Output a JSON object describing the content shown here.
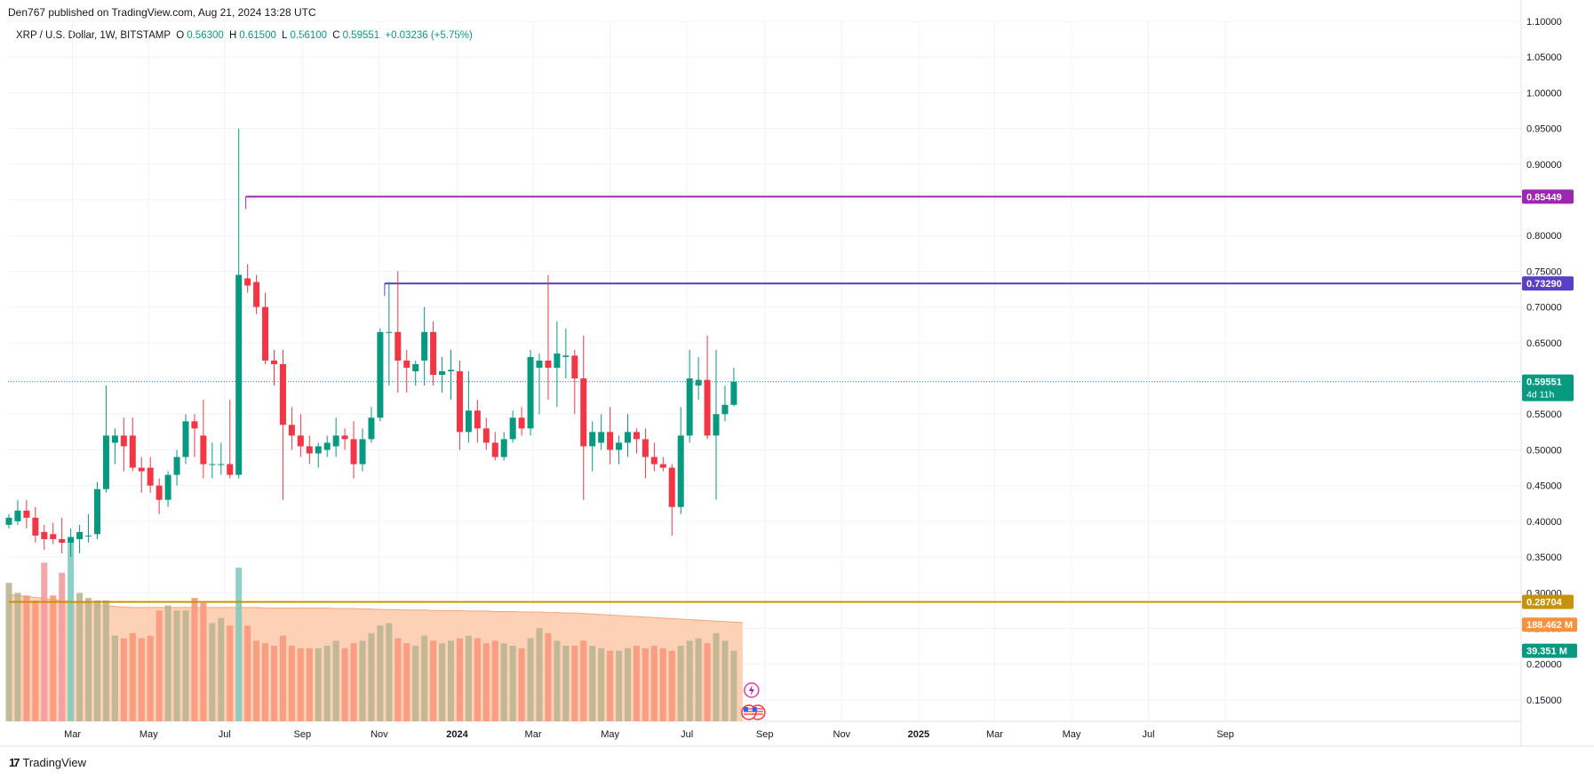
{
  "header": {
    "meta": "Den767 published on TradingView.com, Aug 21, 2024 13:28 UTC"
  },
  "legend": {
    "symbol": "XRP / U.S. Dollar, 1W, BITSTAMP",
    "o_label": "O",
    "o_value": "0.56300",
    "h_label": "H",
    "h_value": "0.61500",
    "l_label": "L",
    "l_value": "0.56100",
    "c_label": "C",
    "c_value": "0.59551",
    "change": "+0.03236 (+5.75%)"
  },
  "footer": {
    "brand": "TradingView",
    "glyph": "17"
  },
  "colors": {
    "up": "#089981",
    "down": "#f23645",
    "vol_up": "#bdb591",
    "vol_down": "#f8987c",
    "vol_avg_fill": "#fcc9a8",
    "line_0854": "#9c27b0",
    "line_0733": "#5b3fc4",
    "line_0287": "#c8920a",
    "price_badge": "#089981",
    "vol_badge": "#f7913d"
  },
  "chart_data": {
    "type": "candlestick",
    "title": "XRP / U.S. Dollar, 1W, BITSTAMP",
    "ylim": [
      0.12,
      1.1
    ],
    "y_ticks": [
      "1.10000",
      "1.05000",
      "1.00000",
      "0.95000",
      "0.90000",
      "0.85000",
      "0.80000",
      "0.75000",
      "0.70000",
      "0.65000",
      "0.60000",
      "0.55000",
      "0.50000",
      "0.45000",
      "0.40000",
      "0.35000",
      "0.30000",
      "0.25000",
      "0.20000",
      "0.15000"
    ],
    "y_tick_values": [
      1.1,
      1.05,
      1.0,
      0.95,
      0.9,
      0.85,
      0.8,
      0.75,
      0.7,
      0.65,
      0.6,
      0.55,
      0.5,
      0.45,
      0.4,
      0.35,
      0.3,
      0.25,
      0.2,
      0.15
    ],
    "x_ticks": [
      {
        "label": "Mar",
        "week": 7.2,
        "bold": false
      },
      {
        "label": "May",
        "week": 15.8,
        "bold": false
      },
      {
        "label": "Jul",
        "week": 24.4,
        "bold": false
      },
      {
        "label": "Sep",
        "week": 33.2,
        "bold": false
      },
      {
        "label": "Nov",
        "week": 41.9,
        "bold": false
      },
      {
        "label": "2024",
        "week": 50.7,
        "bold": true
      },
      {
        "label": "Mar",
        "week": 59.3,
        "bold": false
      },
      {
        "label": "May",
        "week": 68.0,
        "bold": false
      },
      {
        "label": "Jul",
        "week": 76.7,
        "bold": false
      },
      {
        "label": "Sep",
        "week": 85.5,
        "bold": false
      },
      {
        "label": "Nov",
        "week": 94.2,
        "bold": false
      },
      {
        "label": "2025",
        "week": 102.9,
        "bold": true
      },
      {
        "label": "Mar",
        "week": 111.5,
        "bold": false
      },
      {
        "label": "May",
        "week": 120.2,
        "bold": false
      },
      {
        "label": "Jul",
        "week": 128.9,
        "bold": false
      },
      {
        "label": "Sep",
        "week": 137.6,
        "bold": false
      }
    ],
    "candles": [
      {
        "o": 0.395,
        "h": 0.41,
        "l": 0.39,
        "c": 0.405,
        "v": 0.275
      },
      {
        "o": 0.4,
        "h": 0.43,
        "l": 0.395,
        "c": 0.415,
        "v": 0.255
      },
      {
        "o": 0.415,
        "h": 0.43,
        "l": 0.39,
        "c": 0.405,
        "v": 0.25
      },
      {
        "o": 0.405,
        "h": 0.42,
        "l": 0.37,
        "c": 0.38,
        "v": 0.24
      },
      {
        "o": 0.385,
        "h": 0.395,
        "l": 0.36,
        "c": 0.375,
        "v": 0.315
      },
      {
        "o": 0.382,
        "h": 0.398,
        "l": 0.368,
        "c": 0.375,
        "v": 0.25
      },
      {
        "o": 0.375,
        "h": 0.405,
        "l": 0.355,
        "c": 0.37,
        "v": 0.295
      },
      {
        "o": 0.37,
        "h": 0.39,
        "l": 0.35,
        "c": 0.378,
        "v": 0.36
      },
      {
        "o": 0.375,
        "h": 0.395,
        "l": 0.355,
        "c": 0.385,
        "v": 0.255
      },
      {
        "o": 0.38,
        "h": 0.41,
        "l": 0.37,
        "c": 0.38,
        "v": 0.245
      },
      {
        "o": 0.382,
        "h": 0.455,
        "l": 0.375,
        "c": 0.445,
        "v": 0.24
      },
      {
        "o": 0.445,
        "h": 0.59,
        "l": 0.44,
        "c": 0.52,
        "v": 0.24
      },
      {
        "o": 0.51,
        "h": 0.53,
        "l": 0.48,
        "c": 0.52,
        "v": 0.17
      },
      {
        "o": 0.52,
        "h": 0.545,
        "l": 0.47,
        "c": 0.505,
        "v": 0.165
      },
      {
        "o": 0.52,
        "h": 0.545,
        "l": 0.47,
        "c": 0.475,
        "v": 0.175
      },
      {
        "o": 0.475,
        "h": 0.49,
        "l": 0.44,
        "c": 0.47,
        "v": 0.165
      },
      {
        "o": 0.475,
        "h": 0.49,
        "l": 0.44,
        "c": 0.45,
        "v": 0.17
      },
      {
        "o": 0.45,
        "h": 0.46,
        "l": 0.41,
        "c": 0.43,
        "v": 0.22
      },
      {
        "o": 0.43,
        "h": 0.47,
        "l": 0.42,
        "c": 0.465,
        "v": 0.23
      },
      {
        "o": 0.465,
        "h": 0.5,
        "l": 0.45,
        "c": 0.49,
        "v": 0.22
      },
      {
        "o": 0.49,
        "h": 0.55,
        "l": 0.48,
        "c": 0.54,
        "v": 0.22
      },
      {
        "o": 0.54,
        "h": 0.55,
        "l": 0.49,
        "c": 0.53,
        "v": 0.245
      },
      {
        "o": 0.52,
        "h": 0.57,
        "l": 0.46,
        "c": 0.48,
        "v": 0.235
      },
      {
        "o": 0.48,
        "h": 0.51,
        "l": 0.46,
        "c": 0.48,
        "v": 0.195
      },
      {
        "o": 0.48,
        "h": 0.51,
        "l": 0.465,
        "c": 0.48,
        "v": 0.205
      },
      {
        "o": 0.48,
        "h": 0.57,
        "l": 0.46,
        "c": 0.465,
        "v": 0.19
      },
      {
        "o": 0.465,
        "h": 0.95,
        "l": 0.46,
        "c": 0.745,
        "v": 0.305
      },
      {
        "o": 0.74,
        "h": 0.76,
        "l": 0.72,
        "c": 0.73,
        "v": 0.19
      },
      {
        "o": 0.735,
        "h": 0.745,
        "l": 0.69,
        "c": 0.7,
        "v": 0.16
      },
      {
        "o": 0.7,
        "h": 0.72,
        "l": 0.62,
        "c": 0.625,
        "v": 0.155
      },
      {
        "o": 0.625,
        "h": 0.64,
        "l": 0.59,
        "c": 0.62,
        "v": 0.15
      },
      {
        "o": 0.62,
        "h": 0.64,
        "l": 0.43,
        "c": 0.535,
        "v": 0.17
      },
      {
        "o": 0.535,
        "h": 0.56,
        "l": 0.5,
        "c": 0.52,
        "v": 0.15
      },
      {
        "o": 0.52,
        "h": 0.55,
        "l": 0.49,
        "c": 0.505,
        "v": 0.145
      },
      {
        "o": 0.505,
        "h": 0.52,
        "l": 0.48,
        "c": 0.495,
        "v": 0.145
      },
      {
        "o": 0.495,
        "h": 0.51,
        "l": 0.475,
        "c": 0.505,
        "v": 0.145
      },
      {
        "o": 0.5,
        "h": 0.52,
        "l": 0.49,
        "c": 0.51,
        "v": 0.15
      },
      {
        "o": 0.505,
        "h": 0.545,
        "l": 0.49,
        "c": 0.52,
        "v": 0.16
      },
      {
        "o": 0.52,
        "h": 0.53,
        "l": 0.5,
        "c": 0.515,
        "v": 0.145
      },
      {
        "o": 0.515,
        "h": 0.54,
        "l": 0.46,
        "c": 0.48,
        "v": 0.155
      },
      {
        "o": 0.48,
        "h": 0.53,
        "l": 0.47,
        "c": 0.515,
        "v": 0.16
      },
      {
        "o": 0.515,
        "h": 0.56,
        "l": 0.51,
        "c": 0.545,
        "v": 0.175
      },
      {
        "o": 0.545,
        "h": 0.67,
        "l": 0.54,
        "c": 0.665,
        "v": 0.19
      },
      {
        "o": 0.665,
        "h": 0.735,
        "l": 0.59,
        "c": 0.665,
        "v": 0.195
      },
      {
        "o": 0.665,
        "h": 0.75,
        "l": 0.58,
        "c": 0.625,
        "v": 0.165
      },
      {
        "o": 0.625,
        "h": 0.64,
        "l": 0.58,
        "c": 0.615,
        "v": 0.155
      },
      {
        "o": 0.61,
        "h": 0.625,
        "l": 0.59,
        "c": 0.62,
        "v": 0.15
      },
      {
        "o": 0.625,
        "h": 0.7,
        "l": 0.59,
        "c": 0.665,
        "v": 0.17
      },
      {
        "o": 0.665,
        "h": 0.68,
        "l": 0.59,
        "c": 0.605,
        "v": 0.16
      },
      {
        "o": 0.605,
        "h": 0.63,
        "l": 0.58,
        "c": 0.61,
        "v": 0.155
      },
      {
        "o": 0.61,
        "h": 0.64,
        "l": 0.57,
        "c": 0.612,
        "v": 0.16
      },
      {
        "o": 0.61,
        "h": 0.625,
        "l": 0.5,
        "c": 0.525,
        "v": 0.165
      },
      {
        "o": 0.525,
        "h": 0.61,
        "l": 0.51,
        "c": 0.555,
        "v": 0.17
      },
      {
        "o": 0.555,
        "h": 0.57,
        "l": 0.51,
        "c": 0.53,
        "v": 0.165
      },
      {
        "o": 0.53,
        "h": 0.545,
        "l": 0.5,
        "c": 0.51,
        "v": 0.155
      },
      {
        "o": 0.51,
        "h": 0.525,
        "l": 0.485,
        "c": 0.49,
        "v": 0.16
      },
      {
        "o": 0.49,
        "h": 0.525,
        "l": 0.485,
        "c": 0.515,
        "v": 0.155
      },
      {
        "o": 0.515,
        "h": 0.555,
        "l": 0.51,
        "c": 0.545,
        "v": 0.15
      },
      {
        "o": 0.545,
        "h": 0.56,
        "l": 0.52,
        "c": 0.53,
        "v": 0.145
      },
      {
        "o": 0.53,
        "h": 0.64,
        "l": 0.52,
        "c": 0.63,
        "v": 0.165
      },
      {
        "o": 0.615,
        "h": 0.635,
        "l": 0.55,
        "c": 0.625,
        "v": 0.185
      },
      {
        "o": 0.625,
        "h": 0.745,
        "l": 0.57,
        "c": 0.615,
        "v": 0.175
      },
      {
        "o": 0.615,
        "h": 0.68,
        "l": 0.56,
        "c": 0.635,
        "v": 0.16
      },
      {
        "o": 0.63,
        "h": 0.67,
        "l": 0.6,
        "c": 0.632,
        "v": 0.15
      },
      {
        "o": 0.632,
        "h": 0.64,
        "l": 0.55,
        "c": 0.6,
        "v": 0.15
      },
      {
        "o": 0.6,
        "h": 0.66,
        "l": 0.43,
        "c": 0.505,
        "v": 0.16
      },
      {
        "o": 0.505,
        "h": 0.54,
        "l": 0.47,
        "c": 0.525,
        "v": 0.15
      },
      {
        "o": 0.51,
        "h": 0.55,
        "l": 0.5,
        "c": 0.525,
        "v": 0.145
      },
      {
        "o": 0.525,
        "h": 0.56,
        "l": 0.48,
        "c": 0.5,
        "v": 0.14
      },
      {
        "o": 0.5,
        "h": 0.52,
        "l": 0.48,
        "c": 0.51,
        "v": 0.14
      },
      {
        "o": 0.51,
        "h": 0.55,
        "l": 0.49,
        "c": 0.525,
        "v": 0.145
      },
      {
        "o": 0.525,
        "h": 0.53,
        "l": 0.495,
        "c": 0.515,
        "v": 0.15
      },
      {
        "o": 0.515,
        "h": 0.53,
        "l": 0.46,
        "c": 0.49,
        "v": 0.145
      },
      {
        "o": 0.49,
        "h": 0.51,
        "l": 0.47,
        "c": 0.48,
        "v": 0.15
      },
      {
        "o": 0.48,
        "h": 0.49,
        "l": 0.47,
        "c": 0.475,
        "v": 0.145
      },
      {
        "o": 0.475,
        "h": 0.48,
        "l": 0.38,
        "c": 0.42,
        "v": 0.14
      },
      {
        "o": 0.42,
        "h": 0.56,
        "l": 0.41,
        "c": 0.52,
        "v": 0.15
      },
      {
        "o": 0.52,
        "h": 0.64,
        "l": 0.51,
        "c": 0.6,
        "v": 0.16
      },
      {
        "o": 0.59,
        "h": 0.63,
        "l": 0.57,
        "c": 0.598,
        "v": 0.165
      },
      {
        "o": 0.598,
        "h": 0.66,
        "l": 0.515,
        "c": 0.52,
        "v": 0.155
      },
      {
        "o": 0.52,
        "h": 0.64,
        "l": 0.43,
        "c": 0.55,
        "v": 0.175
      },
      {
        "o": 0.55,
        "h": 0.59,
        "l": 0.54,
        "c": 0.563,
        "v": 0.16
      },
      {
        "o": 0.563,
        "h": 0.615,
        "l": 0.561,
        "c": 0.5955,
        "v": 0.14
      }
    ],
    "vol_avg": [
      0.252,
      0.25,
      0.248,
      0.246,
      0.244,
      0.242,
      0.24,
      0.238,
      0.236,
      0.234,
      0.232,
      0.23,
      0.228,
      0.227,
      0.226,
      0.226,
      0.226,
      0.226,
      0.226,
      0.226,
      0.226,
      0.226,
      0.226,
      0.226,
      0.226,
      0.226,
      0.226,
      0.226,
      0.226,
      0.225,
      0.225,
      0.225,
      0.225,
      0.225,
      0.225,
      0.225,
      0.225,
      0.224,
      0.224,
      0.224,
      0.223,
      0.223,
      0.222,
      0.222,
      0.222,
      0.221,
      0.221,
      0.221,
      0.22,
      0.22,
      0.22,
      0.22,
      0.219,
      0.219,
      0.219,
      0.218,
      0.218,
      0.218,
      0.217,
      0.217,
      0.217,
      0.216,
      0.216,
      0.215,
      0.215,
      0.214,
      0.213,
      0.212,
      0.211,
      0.21,
      0.209,
      0.208,
      0.207,
      0.206,
      0.205,
      0.204,
      0.203,
      0.202,
      0.201,
      0.2,
      0.199,
      0.198,
      0.197,
      0.196
    ],
    "hlines": [
      {
        "value": 0.85449,
        "label": "0.85449",
        "start_week": 26.8,
        "color_key": "line_0854"
      },
      {
        "value": 0.7329,
        "label": "0.73290",
        "start_week": 42.5,
        "color_key": "line_0733"
      },
      {
        "value": 0.28704,
        "label": "0.28704",
        "start_week": 0,
        "color_key": "line_0287"
      }
    ],
    "last_price": {
      "value": 0.59551,
      "label": "0.59551",
      "countdown": "4d 11h"
    },
    "volume_avg_label": {
      "value": 0.192,
      "label": "188.462 M"
    },
    "volume_label": {
      "value": 0.14,
      "label": "39.351 M"
    }
  }
}
